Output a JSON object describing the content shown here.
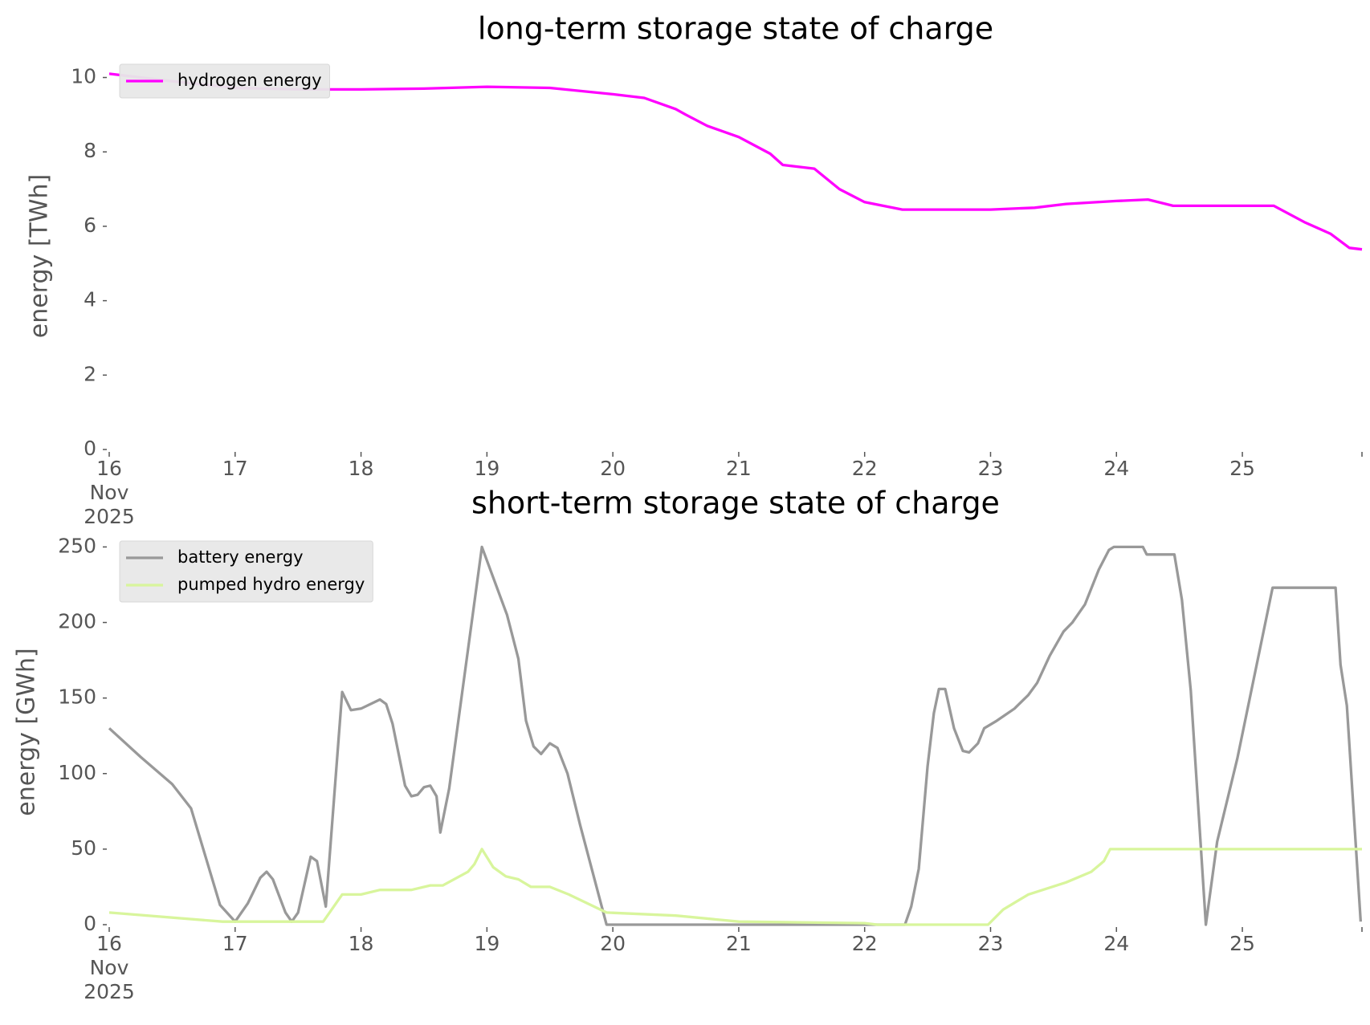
{
  "chart_data": [
    {
      "type": "line",
      "title": "long-term storage state of charge",
      "ylabel": "energy [TWh]",
      "xlim": [
        16,
        25.95
      ],
      "xticks": [
        {
          "value": 16,
          "label": "16 Nov 2025"
        },
        17,
        18,
        19,
        20,
        21,
        22,
        23,
        24,
        25
      ],
      "ylim": [
        0,
        10.4
      ],
      "yticks": [
        0,
        2,
        4,
        6,
        8,
        10
      ],
      "legend": "upper left",
      "series": [
        {
          "name": "hydrogen energy",
          "color": "#ff00ff",
          "x": [
            16.0,
            16.5,
            17.0,
            17.5,
            18.0,
            18.5,
            19.0,
            19.5,
            20.0,
            20.25,
            20.5,
            20.58,
            20.75,
            21.0,
            21.25,
            21.35,
            21.6,
            21.8,
            22.0,
            22.3,
            23.0,
            23.35,
            23.6,
            24.0,
            24.25,
            24.45,
            25.0,
            25.25,
            25.5,
            25.7,
            25.85,
            25.95
          ],
          "values": [
            10.1,
            9.9,
            9.72,
            9.68,
            9.68,
            9.7,
            9.75,
            9.72,
            9.55,
            9.45,
            9.15,
            9.0,
            8.7,
            8.4,
            7.95,
            7.65,
            7.55,
            7.0,
            6.65,
            6.45,
            6.45,
            6.5,
            6.6,
            6.68,
            6.72,
            6.55,
            6.55,
            6.55,
            6.1,
            5.8,
            5.42,
            5.38
          ]
        }
      ]
    },
    {
      "type": "line",
      "title": "short-term storage state of charge",
      "ylabel": "energy [GWh]",
      "xlim": [
        16,
        25.95
      ],
      "xticks": [
        {
          "value": 16,
          "label": "16 Nov 2025"
        },
        17,
        18,
        19,
        20,
        21,
        22,
        23,
        24,
        25
      ],
      "ylim": [
        0,
        255
      ],
      "yticks": [
        0,
        50,
        100,
        150,
        200,
        250
      ],
      "legend": "upper left",
      "series": [
        {
          "name": "battery energy",
          "color": "#999999",
          "x": [
            16.0,
            16.25,
            16.5,
            16.65,
            16.88,
            17.0,
            17.1,
            17.2,
            17.25,
            17.3,
            17.4,
            17.45,
            17.5,
            17.6,
            17.65,
            17.72,
            17.85,
            17.92,
            18.0,
            18.15,
            18.2,
            18.25,
            18.35,
            18.4,
            18.45,
            18.5,
            18.55,
            18.6,
            18.63,
            18.7,
            18.96,
            19.16,
            19.25,
            19.31,
            19.37,
            19.43,
            19.5,
            19.56,
            19.64,
            19.74,
            19.95,
            22.32,
            22.37,
            22.43,
            22.5,
            22.55,
            22.59,
            22.64,
            22.71,
            22.78,
            22.83,
            22.9,
            22.95,
            23.05,
            23.19,
            23.3,
            23.37,
            23.47,
            23.58,
            23.65,
            23.75,
            23.86,
            23.94,
            23.98,
            24.21,
            24.24,
            24.46,
            24.52,
            24.59,
            24.71,
            24.8,
            24.96,
            25.24,
            25.74,
            25.78,
            25.83,
            25.94
          ],
          "values": [
            130,
            111,
            93,
            77,
            13,
            2,
            14,
            31,
            35,
            30,
            8,
            2,
            8,
            45,
            42,
            12,
            154,
            142,
            143,
            149,
            146,
            133,
            92,
            85,
            86,
            91,
            92,
            85,
            61,
            90,
            250,
            205,
            176,
            135,
            118,
            113,
            120,
            117,
            100,
            66,
            0,
            0,
            12,
            37,
            105,
            140,
            156,
            156,
            130,
            115,
            114,
            120,
            130,
            135,
            143,
            152,
            160,
            178,
            194,
            200,
            212,
            235,
            248,
            250,
            250,
            245,
            245,
            215,
            155,
            0,
            55,
            110,
            223,
            223,
            172,
            145,
            2
          ]
        },
        {
          "name": "pumped hydro energy",
          "color": "#d8f59c",
          "x": [
            16.0,
            16.9,
            17.7,
            17.85,
            18.0,
            18.15,
            18.4,
            18.55,
            18.65,
            18.85,
            18.9,
            18.96,
            19.05,
            19.15,
            19.25,
            19.35,
            19.5,
            19.65,
            19.95,
            20.5,
            21.0,
            22.0,
            22.1,
            22.98,
            23.1,
            23.3,
            23.6,
            23.8,
            23.9,
            23.95,
            25.95
          ],
          "values": [
            8,
            2,
            2,
            20,
            20,
            23,
            23,
            26,
            26,
            35,
            40,
            50,
            38,
            32,
            30,
            25,
            25,
            20,
            8,
            6,
            2,
            1,
            0,
            0,
            10,
            20,
            28,
            35,
            42,
            50,
            50
          ]
        }
      ]
    }
  ]
}
